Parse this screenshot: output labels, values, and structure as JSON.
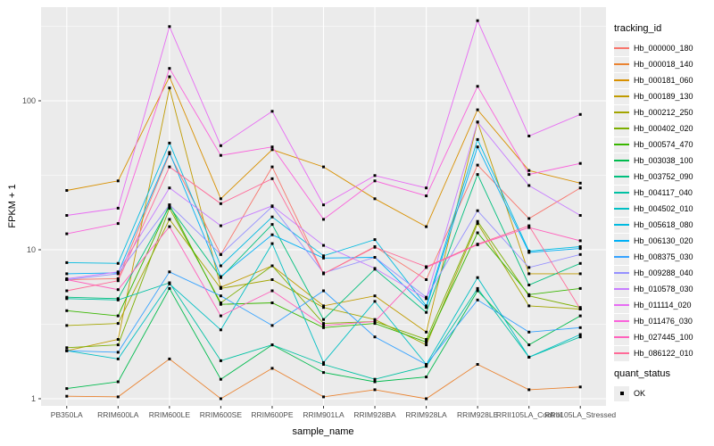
{
  "axes": {
    "ylabel": "FPKM + 1",
    "xlabel": "sample_name",
    "y_tick_labels": [
      "1",
      "10",
      "100"
    ],
    "y_tick_values": [
      1,
      10,
      100
    ]
  },
  "quant_legend": {
    "title": "quant_status",
    "items": [
      {
        "label": "OK",
        "marker": "black-square"
      }
    ]
  },
  "style": {
    "panel_bg": "#EBEBEB",
    "grid_color": "#FFFFFF",
    "tick_text_color": "#4D4D4D",
    "point_color": "#000000"
  },
  "chart_data": {
    "type": "line",
    "yscale": "log10",
    "ylim": [
      1,
      400
    ],
    "grid": true,
    "legend_position": "right",
    "legend_title": "tracking_id",
    "title": "",
    "xlabel": "sample_name",
    "ylabel": "FPKM + 1",
    "point_marker": "filled-black-square (quant_status OK)",
    "x_categories": [
      "PB350LA",
      "RRIM600LA",
      "RRIM600LE",
      "RRIM600SE",
      "RRIM600PE",
      "RRIM901LA",
      "RRIM928BA",
      "RRIM928LA",
      "RRIM928LE",
      "RRII105LA_Control",
      "RRII105LA_Stressed"
    ],
    "series": [
      {
        "name": "Hb_000000_180",
        "color": "#F8766D",
        "values": [
          6.3,
          6.4,
          44,
          9.3,
          36,
          6.9,
          10.5,
          6.3,
          37,
          16.2,
          26
        ]
      },
      {
        "name": "Hb_000018_140",
        "color": "#EA8331",
        "values": [
          1.04,
          1.03,
          1.85,
          1.0,
          1.6,
          1.03,
          1.15,
          1.0,
          1.7,
          1.15,
          1.2
        ]
      },
      {
        "name": "Hb_000181_060",
        "color": "#D89000",
        "values": [
          25,
          29,
          145,
          22,
          47,
          36,
          22,
          14.3,
          87,
          34,
          28
        ]
      },
      {
        "name": "Hb_000189_130",
        "color": "#C09B00",
        "values": [
          2.1,
          2.5,
          122,
          5.6,
          7.8,
          4.2,
          4.9,
          2.8,
          72,
          6.9,
          6.9
        ]
      },
      {
        "name": "Hb_000212_250",
        "color": "#A3A500",
        "values": [
          3.1,
          3.2,
          16,
          5.5,
          6.3,
          4.1,
          3.4,
          2.3,
          15,
          4.2,
          4.0
        ]
      },
      {
        "name": "Hb_000402_020",
        "color": "#7CAE00",
        "values": [
          2.2,
          2.3,
          19,
          4.4,
          7.8,
          3.2,
          3.3,
          2.5,
          15.5,
          4.9,
          4.1
        ]
      },
      {
        "name": "Hb_000574_470",
        "color": "#39B600",
        "values": [
          3.9,
          3.6,
          20,
          4.3,
          4.4,
          3.0,
          3.2,
          2.4,
          13,
          5.0,
          5.5
        ]
      },
      {
        "name": "Hb_003038_100",
        "color": "#00BB4E",
        "values": [
          1.17,
          1.3,
          5.5,
          1.35,
          2.3,
          1.5,
          1.3,
          1.4,
          5.3,
          2.3,
          3.6
        ]
      },
      {
        "name": "Hb_003752_090",
        "color": "#00BF7D",
        "values": [
          4.8,
          4.7,
          19.5,
          6.5,
          14.8,
          3.4,
          7.4,
          3.8,
          32,
          5.8,
          8.1
        ]
      },
      {
        "name": "Hb_004117_040",
        "color": "#00C1A3",
        "values": [
          4.7,
          4.6,
          6.0,
          1.8,
          2.3,
          1.7,
          1.35,
          1.65,
          5.5,
          1.9,
          2.6
        ]
      },
      {
        "name": "Hb_004502_010",
        "color": "#00BFC4",
        "values": [
          2.1,
          1.85,
          5.9,
          2.9,
          11,
          1.75,
          4.5,
          1.7,
          6.5,
          1.9,
          2.7
        ]
      },
      {
        "name": "Hb_005618_080",
        "color": "#00BAE0",
        "values": [
          8.2,
          8.1,
          52,
          7.8,
          16.6,
          9.1,
          11.7,
          4.2,
          55,
          9.8,
          10.5
        ]
      },
      {
        "name": "Hb_006130_020",
        "color": "#00B0F6",
        "values": [
          6.9,
          7.0,
          45,
          6.6,
          12.6,
          8.8,
          8.9,
          4.1,
          49,
          9.6,
          10.2
        ]
      },
      {
        "name": "Hb_008375_030",
        "color": "#35A2FF",
        "values": [
          2.1,
          2.05,
          7.1,
          4.9,
          3.1,
          5.3,
          2.6,
          1.7,
          4.6,
          2.8,
          3.0
        ]
      },
      {
        "name": "Hb_009288_040",
        "color": "#9590FF",
        "values": [
          6.3,
          6.9,
          20,
          9.3,
          19.5,
          7.0,
          8.9,
          4.8,
          18.3,
          7.6,
          9.3
        ]
      },
      {
        "name": "Hb_010578_030",
        "color": "#C77CFF",
        "values": [
          6.4,
          7.1,
          26,
          14.5,
          19.7,
          10.7,
          7.5,
          4.7,
          72,
          27,
          17
        ]
      },
      {
        "name": "Hb_011114_020",
        "color": "#E76BF3",
        "values": [
          17,
          19,
          315,
          50,
          85,
          20,
          31.5,
          26,
          345,
          58,
          81
        ]
      },
      {
        "name": "Hb_011476_030",
        "color": "#FA62DB",
        "values": [
          12.8,
          15,
          165,
          43,
          49,
          16,
          29,
          23,
          125,
          32,
          38
        ]
      },
      {
        "name": "Hb_027445_100",
        "color": "#FF62BC",
        "values": [
          6.3,
          5.4,
          14.3,
          3.6,
          5.3,
          3.1,
          3.3,
          7.6,
          10.8,
          14.1,
          11.5
        ]
      },
      {
        "name": "Hb_086122_010",
        "color": "#FF6A98",
        "values": [
          5.3,
          6.2,
          36,
          20.4,
          30,
          6.9,
          10.4,
          7.7,
          10.9,
          14.5,
          4.0
        ]
      }
    ]
  }
}
